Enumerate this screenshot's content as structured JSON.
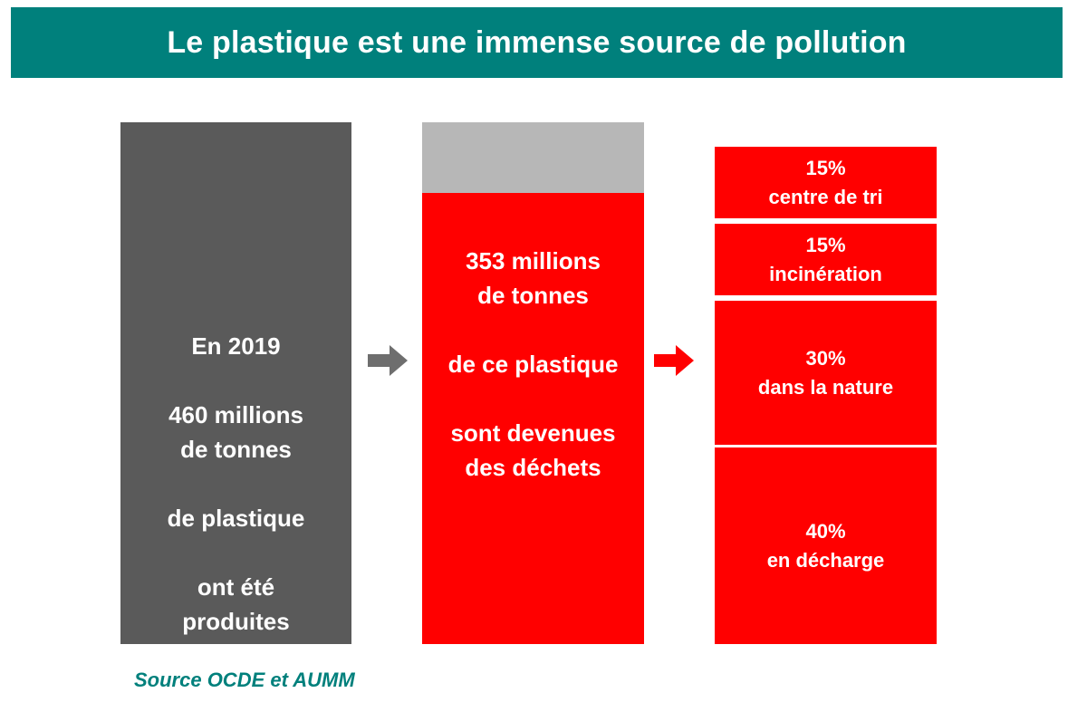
{
  "title": "Le plastique est une immense source de pollution",
  "produced": {
    "year_line": "En 2019",
    "line_1": "460 millions",
    "line_2": "de tonnes",
    "line_3": "de plastique",
    "line_4": "ont été",
    "line_5": "produites"
  },
  "waste": {
    "line_1": "353 millions",
    "line_2": "de tonnes",
    "line_3": "de ce plastique",
    "line_4": "sont devenues",
    "line_5": "des déchets"
  },
  "destinations": [
    {
      "percent": "15%",
      "label": "centre de tri"
    },
    {
      "percent": "15%",
      "label": "incinération"
    },
    {
      "percent": "30%",
      "label": "dans la nature"
    },
    {
      "percent": "40%",
      "label": "en décharge"
    }
  ],
  "source": "Source OCDE et AUMM",
  "colors": {
    "header": "#00807c",
    "produced_block": "#5a5a5a",
    "waste_block": "#ff0000",
    "non_waste_block": "#b7b7b7",
    "arrow_gray": "#6e6e6e",
    "arrow_red": "#ff0000"
  }
}
